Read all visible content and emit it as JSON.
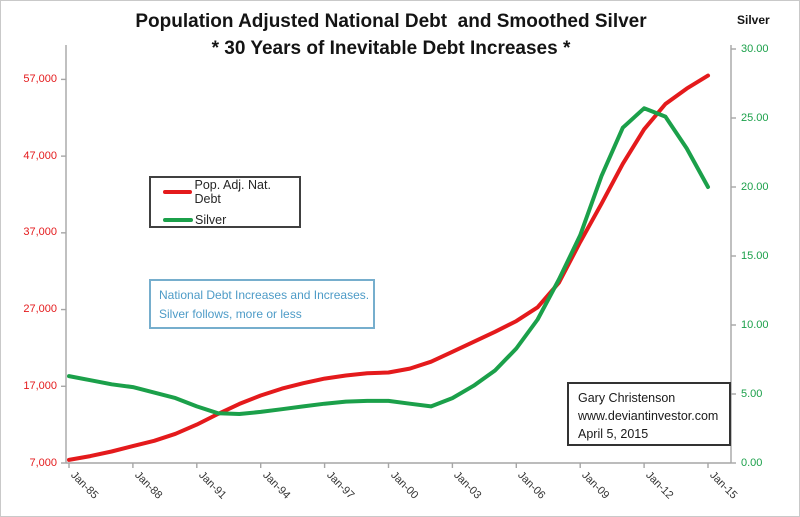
{
  "title": {
    "line1": "Population Adjusted National Debt  and Smoothed Silver",
    "line2": "* 30 Years of Inevitable Debt Increases *"
  },
  "legend": {
    "items": [
      {
        "label": "Pop. Adj. Nat. Debt",
        "color": "#e41a1c"
      },
      {
        "label": "Silver",
        "color": "#1ba04a"
      }
    ]
  },
  "annotation_box": {
    "line1": "National Debt Increases and Increases.",
    "line2": "Silver follows, more or less",
    "text_color": "#4d9bc7",
    "border_color": "#76aecd"
  },
  "credit_box": {
    "line1": "Gary Christenson",
    "line2": "www.deviantinvestor.com",
    "line3": "April 5, 2015"
  },
  "chart_data": {
    "type": "line",
    "title": "Population Adjusted National Debt and Smoothed Silver * 30 Years of Inevitable Debt Increases *",
    "x_label": "",
    "x": [
      1985,
      1986,
      1987,
      1988,
      1989,
      1990,
      1991,
      1992,
      1993,
      1994,
      1995,
      1996,
      1997,
      1998,
      1999,
      2000,
      2001,
      2002,
      2003,
      2004,
      2005,
      2006,
      2007,
      2008,
      2009,
      2010,
      2011,
      2012,
      2013,
      2014,
      2015
    ],
    "x_tick_labels": [
      "Jan-85",
      "Jan-88",
      "Jan-91",
      "Jan-94",
      "Jan-97",
      "Jan-00",
      "Jan-03",
      "Jan-06",
      "Jan-09",
      "Jan-12",
      "Jan-15"
    ],
    "x_tick_years": [
      1985,
      1988,
      1991,
      1994,
      1997,
      2000,
      2003,
      2006,
      2009,
      2012,
      2015
    ],
    "series": [
      {
        "name": "Pop. Adj. Nat. Debt",
        "axis": "left",
        "color": "#e41a1c",
        "values": [
          7400,
          7900,
          8500,
          9200,
          9900,
          10800,
          12000,
          13400,
          14700,
          15800,
          16700,
          17400,
          18000,
          18400,
          18700,
          18800,
          19300,
          20200,
          21500,
          22800,
          24100,
          25500,
          27300,
          30500,
          35800,
          40800,
          46000,
          50500,
          53800,
          55800,
          57500
        ]
      },
      {
        "name": "Silver",
        "axis": "right",
        "color": "#1ba04a",
        "values": [
          6.3,
          6.0,
          5.7,
          5.5,
          5.1,
          4.7,
          4.1,
          3.6,
          3.55,
          3.7,
          3.9,
          4.1,
          4.3,
          4.45,
          4.5,
          4.5,
          4.3,
          4.1,
          4.7,
          5.6,
          6.7,
          8.3,
          10.4,
          13.3,
          16.5,
          20.8,
          24.3,
          25.7,
          25.1,
          22.8,
          20.0
        ]
      }
    ],
    "left_axis": {
      "tick_labels": [
        "57,000",
        "47,000",
        "37,000",
        "27,000",
        "17,000",
        "7,000"
      ],
      "tick_values": [
        57000,
        47000,
        37000,
        27000,
        17000,
        7000
      ],
      "min": 7000,
      "max": 62000,
      "label_color": "#e41a1c"
    },
    "right_axis": {
      "title": "Silver",
      "tick_labels": [
        "30.00",
        "25.00",
        "20.00",
        "15.00",
        "10.00",
        "5.00",
        "0.00"
      ],
      "tick_values": [
        30,
        25,
        20,
        15,
        10,
        5,
        0
      ],
      "min": 0,
      "max": 30,
      "label_color": "#1ba04a"
    },
    "grid": false,
    "legend_position": "inside-upper-left"
  }
}
